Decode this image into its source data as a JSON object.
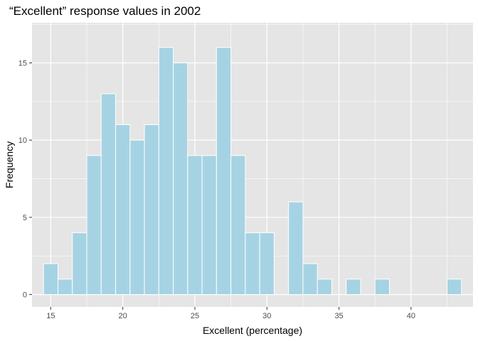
{
  "chart_data": {
    "type": "bar",
    "title": "“Excellent” response values in 2002",
    "xlabel": "Excellent (percentage)",
    "ylabel": "Frequency",
    "xlim": [
      13.7,
      44.3
    ],
    "ylim": [
      -0.8,
      17.6
    ],
    "x_ticks": [
      15,
      20,
      25,
      30,
      35,
      40
    ],
    "y_ticks": [
      0,
      5,
      10,
      15
    ],
    "x_minor_ticks": [
      17.5,
      22.5,
      27.5,
      32.5,
      37.5,
      42.5
    ],
    "y_minor_ticks": [
      2.5,
      7.5,
      12.5,
      17.5
    ],
    "bin_width": 1,
    "bin_centers": [
      15,
      16,
      17,
      18,
      19,
      20,
      21,
      22,
      23,
      24,
      25,
      26,
      27,
      28,
      29,
      30,
      31,
      32,
      33,
      34,
      35,
      36,
      37,
      38,
      39,
      40,
      41,
      42,
      43
    ],
    "values": [
      2,
      1,
      4,
      9,
      13,
      11,
      10,
      11,
      16,
      15,
      9,
      9,
      16,
      9,
      4,
      4,
      0,
      6,
      2,
      1,
      0,
      1,
      0,
      1,
      0,
      0,
      0,
      0,
      1
    ],
    "bar_fill": "#a6d3e3",
    "bar_stroke": "#ffffff",
    "panel_background": "#e5e5e5",
    "grid_color": "#ffffff"
  }
}
